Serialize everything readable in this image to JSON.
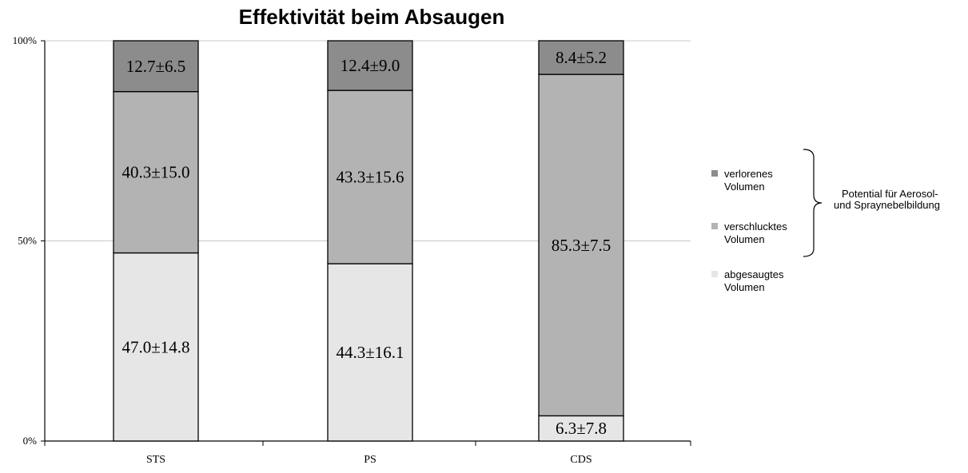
{
  "chart_data": {
    "type": "bar",
    "stacked": true,
    "title": "Effektivität beim Absaugen",
    "categories": [
      "STS",
      "PS",
      "CDS"
    ],
    "y_ticks": [
      "0%",
      "50%",
      "100%"
    ],
    "ylim": [
      0,
      100
    ],
    "grid": true,
    "series": [
      {
        "name": "abgesaugtes Volumen",
        "legend_lines": [
          "abgesaugtes",
          "Volumen"
        ],
        "color": "#e6e6e6",
        "values": [
          47.0,
          44.3,
          6.3
        ],
        "labels": [
          "47.0±14.8",
          "44.3±16.1",
          "6.3±7.8"
        ]
      },
      {
        "name": "verschlucktes Volumen",
        "legend_lines": [
          "verschlucktes",
          "Volumen"
        ],
        "color": "#b3b3b3",
        "values": [
          40.3,
          43.3,
          85.3
        ],
        "labels": [
          "40.3±15.0",
          "43.3±15.6",
          "85.3±7.5"
        ]
      },
      {
        "name": "verlorenes Volumen",
        "legend_lines": [
          "verlorenes",
          "Volumen"
        ],
        "color": "#8c8c8c",
        "values": [
          12.7,
          12.4,
          8.4
        ],
        "labels": [
          "12.7±6.5",
          "12.4±9.0",
          "8.4±5.2"
        ]
      }
    ],
    "legend_placement": "right",
    "annotation": {
      "lines": [
        "Potential für Aerosol-",
        "und Spraynebelbildung"
      ]
    }
  }
}
